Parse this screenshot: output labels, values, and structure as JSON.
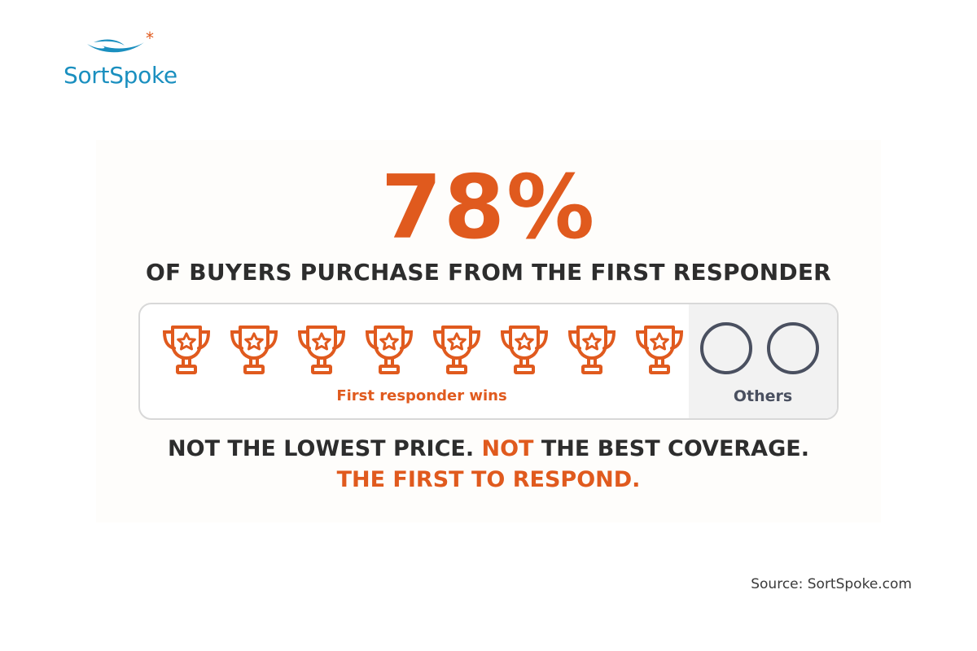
{
  "logo": {
    "text": "SortSpoke",
    "brand_color": "#1a8fbf",
    "accent_color": "#e05a1e"
  },
  "headline": {
    "percent": "78%",
    "subtitle": "OF BUYERS PURCHASE FROM THE FIRST RESPONDER"
  },
  "comparison": {
    "winner_icon": "trophy-star-icon",
    "winner_count": 8,
    "winner_label": "First responder wins",
    "other_icon": "empty-circle-icon",
    "other_count": 2,
    "other_label": "Others"
  },
  "tagline": {
    "part1": "NOT THE LOWEST PRICE. ",
    "part2": "NOT",
    "part3": " THE BEST COVERAGE.",
    "line2": "THE FIRST TO RESPOND."
  },
  "source": "Source: SortSpoke.com",
  "colors": {
    "orange": "#e05a1e",
    "dark_text": "#2d2d2d",
    "gray_icon": "#4a5060"
  }
}
